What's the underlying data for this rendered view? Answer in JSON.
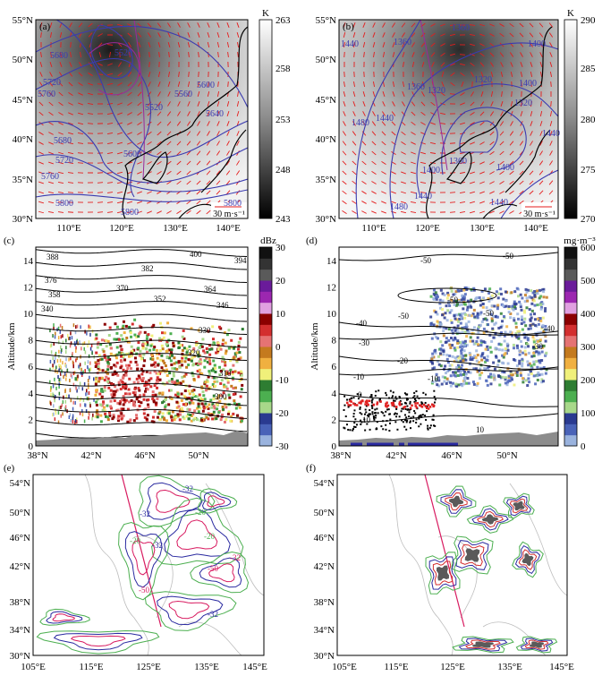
{
  "chart_data": [
    {
      "id": "a",
      "type": "map",
      "panel_label": "(a)",
      "colorbar": {
        "unit": "K",
        "ticks": [
          263,
          258,
          253,
          248,
          243
        ],
        "range": [
          243,
          263
        ],
        "palette": "gray"
      },
      "lat_ticks": [
        "55°N",
        "50°N",
        "45°N",
        "40°N",
        "35°N",
        "30°N"
      ],
      "lon_ticks": [
        "110°E",
        "120°E",
        "130°E",
        "140°E"
      ],
      "contour_labels": [
        "5520",
        "5560",
        "5600",
        "5640",
        "5680",
        "5720",
        "5760",
        "5800"
      ],
      "wind_reference": "30 m·s⁻¹"
    },
    {
      "id": "b",
      "type": "map",
      "panel_label": "(b)",
      "colorbar": {
        "unit": "K",
        "ticks": [
          290,
          285,
          280,
          275,
          270
        ],
        "range": [
          270,
          290
        ],
        "palette": "gray"
      },
      "lat_ticks": [
        "55°N",
        "50°N",
        "45°N",
        "40°N",
        "35°N",
        "30°N"
      ],
      "lon_ticks": [
        "110°E",
        "120°E",
        "130°E",
        "140°E"
      ],
      "contour_labels": [
        "1320",
        "1360",
        "1400",
        "1440",
        "1480"
      ],
      "wind_reference": "30 m·s⁻¹"
    },
    {
      "id": "c",
      "type": "cross-section",
      "panel_label": "(c)",
      "ylabel": "Altitude/km",
      "y_ticks": [
        0,
        2,
        4,
        6,
        8,
        10,
        12,
        14
      ],
      "x_ticks": [
        "38°N",
        "42°N",
        "46°N",
        "50°N"
      ],
      "colorbar": {
        "unit": "dBz",
        "ticks": [
          30,
          20,
          10,
          0,
          -10,
          -20,
          -30
        ],
        "range": [
          -30,
          30
        ],
        "palette": "radar"
      },
      "contour_labels": [
        "300",
        "310",
        "320",
        "330",
        "340",
        "346",
        "352",
        "358",
        "364",
        "370",
        "376",
        "382",
        "388",
        "394",
        "400"
      ]
    },
    {
      "id": "d",
      "type": "cross-section",
      "panel_label": "(d)",
      "ylabel": "Altitude/km",
      "y_ticks": [
        0,
        2,
        4,
        6,
        8,
        10,
        12,
        14
      ],
      "x_ticks": [
        "38°N",
        "42°N",
        "46°N",
        "50°N"
      ],
      "colorbar": {
        "unit": "mg·m⁻³",
        "ticks": [
          600,
          500,
          400,
          300,
          200,
          100,
          0
        ],
        "range": [
          0,
          600
        ],
        "palette": "radar"
      },
      "contour_labels": [
        "-50",
        "-40",
        "-30",
        "-20",
        "-10",
        "0",
        "10"
      ]
    },
    {
      "id": "e",
      "type": "map",
      "panel_label": "(e)",
      "lat_ticks": [
        "54°N",
        "50°N",
        "46°N",
        "42°N",
        "38°N",
        "34°N",
        "30°N"
      ],
      "lon_ticks": [
        "105°E",
        "115°E",
        "125°E",
        "135°E",
        "145°E"
      ],
      "contour_labels": [
        "-20",
        "-32",
        "-50"
      ]
    },
    {
      "id": "f",
      "type": "map",
      "panel_label": "(f)",
      "lat_ticks": [
        "54°N",
        "50°N",
        "46°N",
        "42°N",
        "38°N",
        "34°N",
        "30°N"
      ],
      "lon_ticks": [
        "105°E",
        "115°E",
        "125°E",
        "135°E",
        "145°E"
      ],
      "contour_labels": []
    }
  ]
}
